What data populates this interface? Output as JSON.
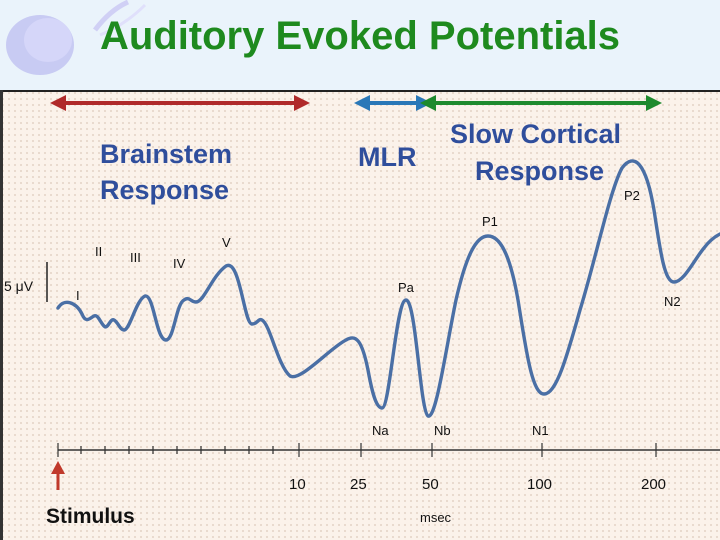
{
  "slide": {
    "title": "Auditory Evoked Potentials"
  },
  "regions": {
    "brainstem": [
      "Brainstem",
      "Response"
    ],
    "mlr": "MLR",
    "slow": [
      "Slow Cortical",
      "Response"
    ]
  },
  "scale_label": "5 μV",
  "peaks": {
    "I": "I",
    "II": "II",
    "III": "III",
    "IV": "IV",
    "V": "V",
    "Na": "Na",
    "Pa": "Pa",
    "Nb": "Nb",
    "P1": "P1",
    "N1": "N1",
    "P2": "P2",
    "N2": "N2"
  },
  "axis": {
    "ticks": [
      "10",
      "25",
      "50",
      "100",
      "200"
    ],
    "unit": "msec",
    "stimulus": "Stimulus"
  },
  "colors": {
    "title": "#1e8a1e",
    "brainstem_arrow": "#b02a2a",
    "mlr_arrow": "#2a78b8",
    "slow_arrow": "#1e8a2e",
    "waveform": "#4a6fa5",
    "region_text": "#2f4e9c",
    "stimulus_arrow": "#c0392b"
  }
}
